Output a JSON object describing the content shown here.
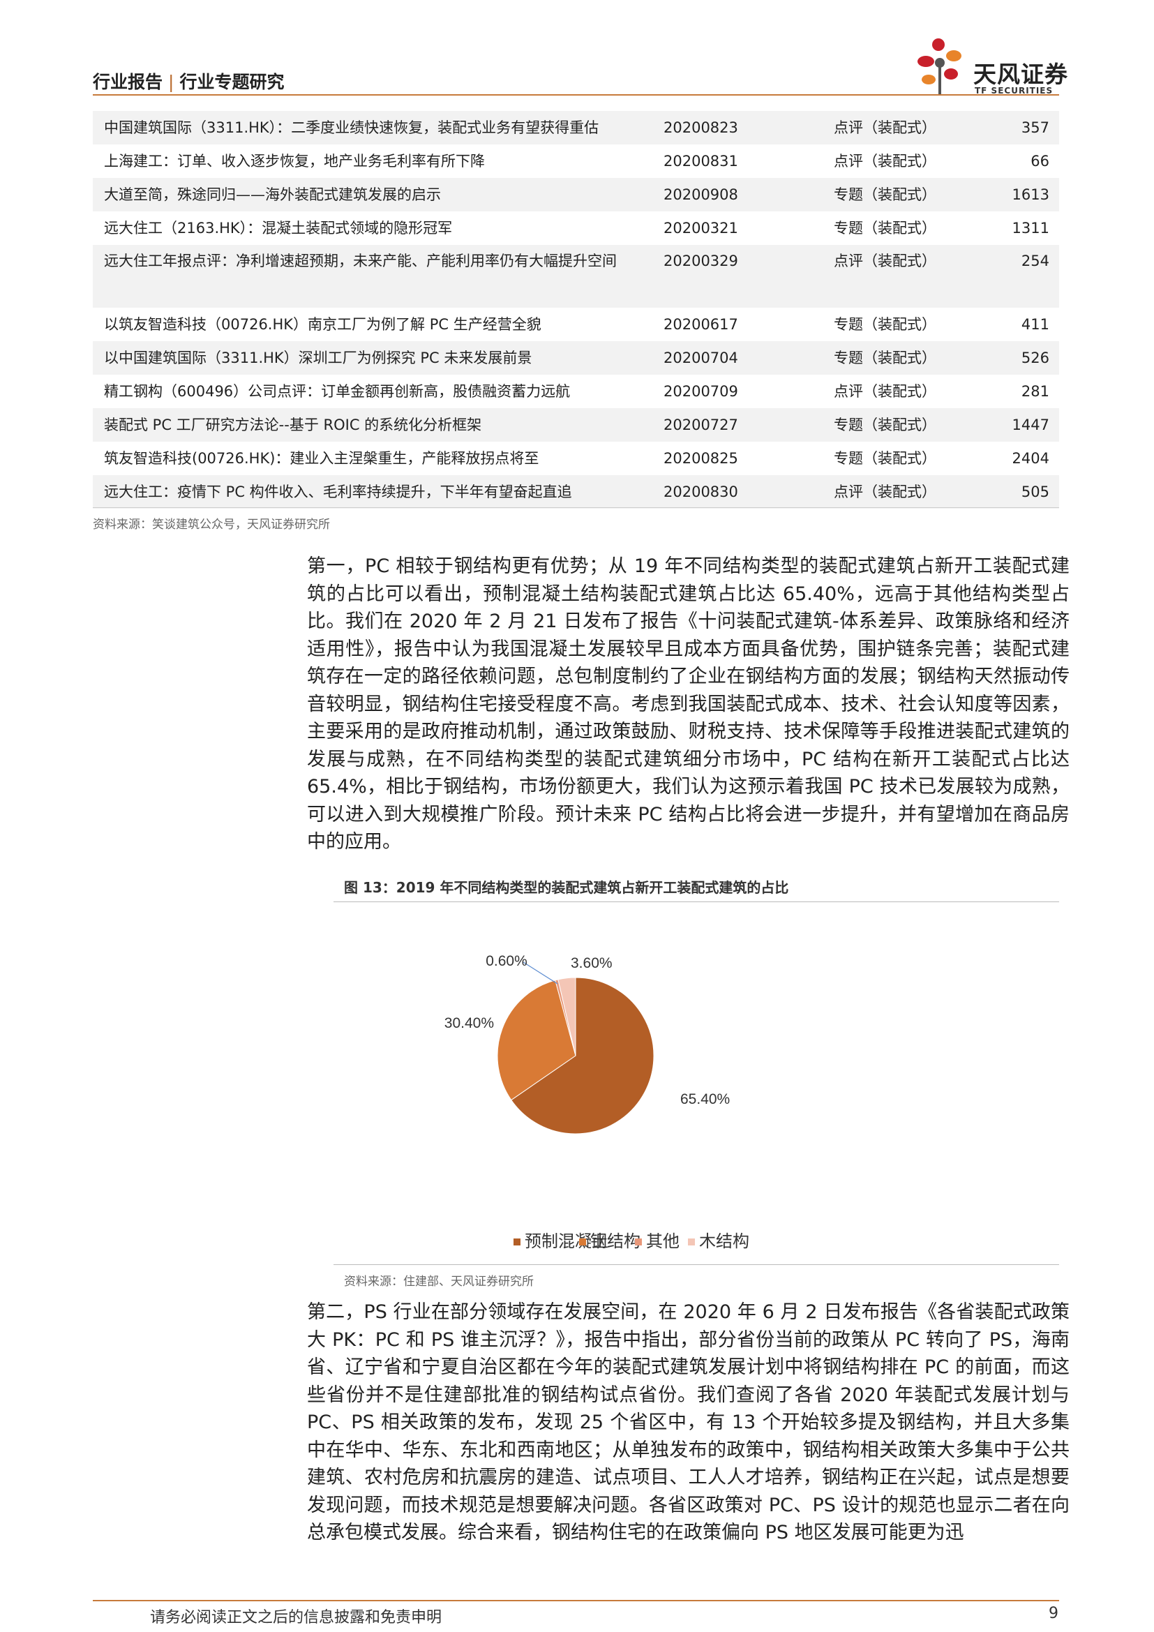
{
  "header": {
    "category": "行业报告",
    "subcategory": "行业专题研究",
    "brand": "天风证券",
    "brand_en": "TF SECURITIES"
  },
  "report_table": {
    "rows": [
      {
        "title": "中国建筑国际（3311.HK）：二季度业绩快速恢复，装配式业务有望获得重估",
        "date": "20200823",
        "type": "点评（装配式）",
        "reads": "357"
      },
      {
        "title": "上海建工：订单、收入逐步恢复，地产业务毛利率有所下降",
        "date": "20200831",
        "type": "点评（装配式）",
        "reads": "66"
      },
      {
        "title": "大道至简，殊途同归——海外装配式建筑发展的启示",
        "date": "20200908",
        "type": "专题（装配式）",
        "reads": "1613"
      },
      {
        "title": "远大住工（2163.HK）：混凝土装配式领域的隐形冠军",
        "date": "20200321",
        "type": "专题（装配式）",
        "reads": "1311"
      },
      {
        "title": "远大住工年报点评：净利增速超预期，未来产能、产能利用率仍有大幅提升空间",
        "date": "20200329",
        "type": "点评（装配式）",
        "reads": "254"
      },
      {
        "title": "以筑友智造科技（00726.HK）南京工厂为例了解 PC 生产经营全貌",
        "date": "20200617",
        "type": "专题（装配式）",
        "reads": "411"
      },
      {
        "title": "以中国建筑国际（3311.HK）深圳工厂为例探究 PC 未来发展前景",
        "date": "20200704",
        "type": "专题（装配式）",
        "reads": "526"
      },
      {
        "title": "精工钢构（600496）公司点评：订单金额再创新高，股债融资蓄力远航",
        "date": "20200709",
        "type": "点评（装配式）",
        "reads": "281"
      },
      {
        "title": "装配式 PC 工厂研究方法论--基于 ROIC 的系统化分析框架",
        "date": "20200727",
        "type": "专题（装配式）",
        "reads": "1447"
      },
      {
        "title": "筑友智造科技(00726.HK)：建业入主涅槃重生，产能释放拐点将至",
        "date": "20200825",
        "type": "专题（装配式）",
        "reads": "2404"
      },
      {
        "title": "远大住工：疫情下 PC 构件收入、毛利率持续提升，下半年有望奋起直追",
        "date": "20200830",
        "type": "点评（装配式）",
        "reads": "505"
      }
    ],
    "source": "资料来源：笑谈建筑公众号，天风证券研究所"
  },
  "paragraph_1": "第一，PC 相较于钢结构更有优势；从 19 年不同结构类型的装配式建筑占新开工装配式建筑的占比可以看出，预制混凝土结构装配式建筑占比达 65.40%，远高于其他结构类型占比。我们在 2020 年 2 月 21 日发布了报告《十问装配式建筑-体系差异、政策脉络和经济适用性》，报告中认为我国混凝土发展较早且成本方面具备优势，围护链条完善；装配式建筑存在一定的路径依赖问题，总包制度制约了企业在钢结构方面的发展；钢结构天然振动传音较明显，钢结构住宅接受程度不高。考虑到我国装配式成本、技术、社会认知度等因素，主要采用的是政府推动机制，通过政策鼓励、财税支持、技术保障等手段推进装配式建筑的发展与成熟，在不同结构类型的装配式建筑细分市场中，PC 结构在新开工装配式占比达 65.4%，相比于钢结构，市场份额更大，我们认为这预示着我国 PC 技术已发展较为成熟，可以进入到大规模推广阶段。预计未来 PC 结构占比将会进一步提升，并有望增加在商品房中的应用。",
  "figure": {
    "title": "图 13：2019 年不同结构类型的装配式建筑占新开工装配式建筑的占比",
    "source": "资料来源：住建部、天风证券研究所"
  },
  "chart_data": {
    "type": "pie",
    "title": "2019 年不同结构类型的装配式建筑占新开工装配式建筑的占比",
    "unit": "%",
    "slices": [
      {
        "name": "预制混凝土",
        "value": 65.4,
        "label": "65.40%",
        "color": "#b35e26"
      },
      {
        "name": "钢结构",
        "value": 30.4,
        "label": "30.40%",
        "color": "#d97a35"
      },
      {
        "name": "其他",
        "value": 0.6,
        "label": "0.60%",
        "color": "#e8987a"
      },
      {
        "name": "木结构",
        "value": 3.6,
        "label": "3.60%",
        "color": "#f4c6b6"
      }
    ],
    "legend_position": "bottom"
  },
  "paragraph_2": "第二，PS 行业在部分领域存在发展空间，在 2020 年 6 月 2 日发布报告《各省装配式政策大 PK：PC 和 PS 谁主沉浮？》，报告中指出，部分省份当前的政策从 PC 转向了 PS，海南省、辽宁省和宁夏自治区都在今年的装配式建筑发展计划中将钢结构排在 PC 的前面，而这些省份并不是住建部批准的钢结构试点省份。我们查阅了各省 2020 年装配式发展计划与 PC、PS 相关政策的发布，发现 25 个省区中，有 13 个开始较多提及钢结构，并且大多集中在华中、华东、东北和西南地区；从单独发布的政策中，钢结构相关政策大多集中于公共建筑、农村危房和抗震房的建造、试点项目、工人人才培养，钢结构正在兴起，试点是想要发现问题，而技术规范是想要解决问题。各省区政策对 PC、PS 设计的规范也显示二者在向总承包模式发展。综合来看，钢结构住宅的在政策偏向 PS 地区发展可能更为迅",
  "footer": {
    "disclaimer": "请务必阅读正文之后的信息披露和免责申明",
    "page": "9"
  },
  "colors": {
    "accent": "#c77a3b",
    "logo_red": "#c8202b",
    "logo_orange": "#e8842a"
  }
}
